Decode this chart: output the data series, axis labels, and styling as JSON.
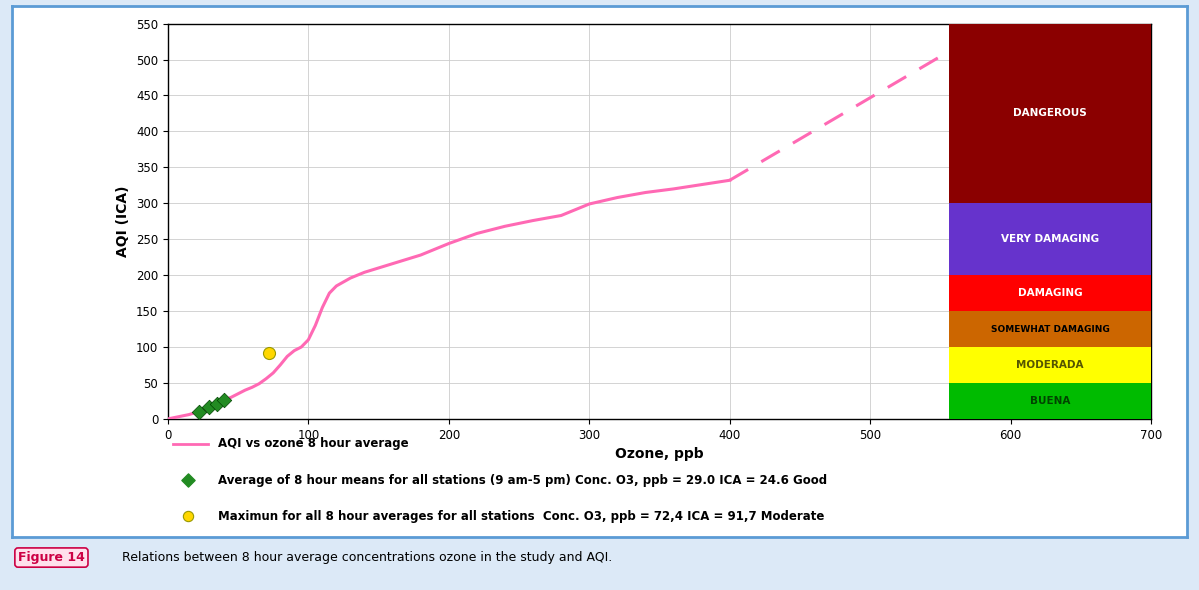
{
  "xlabel": "Ozone, ppb",
  "ylabel": "AQI (ICA)",
  "xlim": [
    0,
    700
  ],
  "ylim": [
    0,
    550
  ],
  "xticks": [
    0,
    100,
    200,
    300,
    400,
    500,
    600,
    700
  ],
  "yticks": [
    0,
    50,
    100,
    150,
    200,
    250,
    300,
    350,
    400,
    450,
    500,
    550
  ],
  "line_color": "#FF69B4",
  "line_label": "AQI vs ozone 8 hour average",
  "curve_x": [
    0,
    5,
    10,
    15,
    20,
    25,
    30,
    35,
    40,
    45,
    50,
    55,
    60,
    65,
    70,
    75,
    80,
    85,
    90,
    95,
    100,
    105,
    110,
    115,
    120,
    130,
    140,
    150,
    160,
    170,
    180,
    190,
    200,
    220,
    240,
    260,
    280,
    300,
    320,
    340,
    360,
    380,
    400
  ],
  "curve_y": [
    0,
    2,
    4,
    6,
    9,
    12,
    17,
    21,
    26,
    30,
    35,
    40,
    44,
    49,
    56,
    64,
    75,
    87,
    95,
    100,
    110,
    130,
    155,
    175,
    185,
    196,
    204,
    210,
    216,
    222,
    228,
    236,
    244,
    258,
    268,
    276,
    283,
    299,
    308,
    315,
    320,
    326,
    332
  ],
  "dashed_start_x": 400,
  "dashed_start_y": 332,
  "dashed_end_x": 555,
  "dashed_end_y": 510,
  "green_points_x": [
    22,
    29,
    35,
    40
  ],
  "green_points_y": [
    10,
    17,
    21,
    26
  ],
  "yellow_point_x": 72,
  "yellow_point_y": 92,
  "green_legend_label": "Average of 8 hour means for all stations (9 am-5 pm) Conc. O3, ppb = 29.0 ICA = 24.6 Good",
  "yellow_legend_label": "Maximun for all 8 hour averages for all stations  Conc. O3, ppb = 72,4 ICA = 91,7 Moderate",
  "zones": [
    {
      "label": "BUENA",
      "ymin": 0,
      "ymax": 50,
      "color": "#00BB00",
      "text_color": "#004400"
    },
    {
      "label": "MODERADA",
      "ymin": 50,
      "ymax": 100,
      "color": "#FFFF00",
      "text_color": "#555500"
    },
    {
      "label": "SOMEWHAT DAMAGING",
      "ymin": 100,
      "ymax": 150,
      "color": "#CC6600",
      "text_color": "#000000"
    },
    {
      "label": "DAMAGING",
      "ymin": 150,
      "ymax": 200,
      "color": "#FF0000",
      "text_color": "#ffffff"
    },
    {
      "label": "VERY DAMAGING",
      "ymin": 200,
      "ymax": 300,
      "color": "#6633CC",
      "text_color": "#ffffff"
    },
    {
      "label": "DANGEROUS",
      "ymin": 300,
      "ymax": 550,
      "color": "#8B0000",
      "text_color": "#ffffff"
    }
  ],
  "zone_x_start": 556,
  "zone_x_end": 700,
  "figure_caption_bold": "Figure 14",
  "figure_caption_rest": "   Relations between 8 hour average concentrations ozone in the study and AQI.",
  "bg_color": "#ffffff",
  "outer_bg": "#dce9f7",
  "border_color": "#5b9bd5",
  "chart_bg": "#ffffff"
}
